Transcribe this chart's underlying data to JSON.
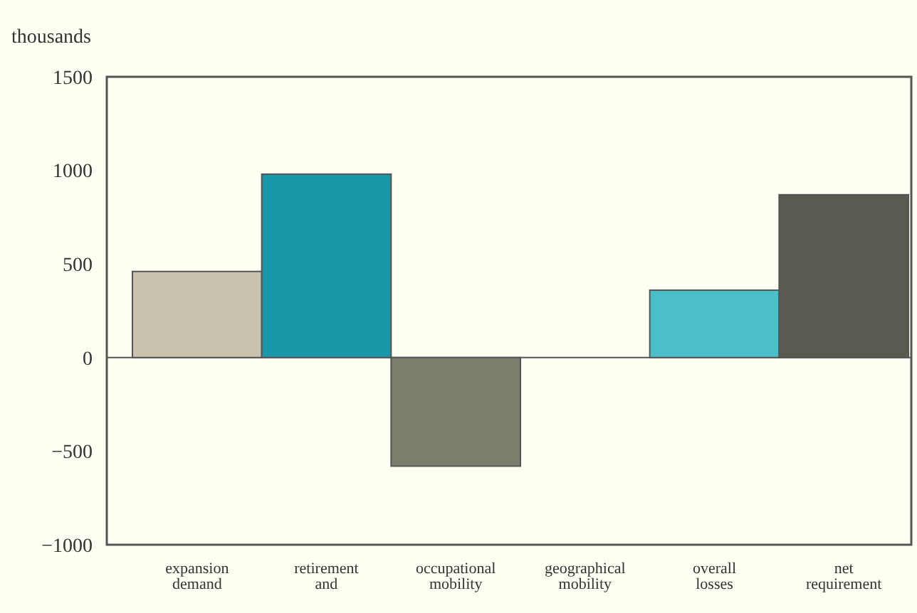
{
  "chart_data": {
    "type": "bar",
    "ylabel": "thousands",
    "categories": [
      "expansion demand",
      "retirement and",
      "occupational mobility",
      "geographical mobility",
      "overall losses",
      "net requirement"
    ],
    "values": [
      460,
      980,
      -580,
      0,
      360,
      870
    ],
    "colors": [
      "#c8c2ae",
      "#1a97a8",
      "#7d7d6e",
      "#9a9a8c",
      "#4bbfc8",
      "#5a5a50"
    ],
    "ylim": [
      -1000,
      1500
    ],
    "yticks": [
      -1000,
      -500,
      0,
      500,
      1000,
      1500
    ]
  }
}
